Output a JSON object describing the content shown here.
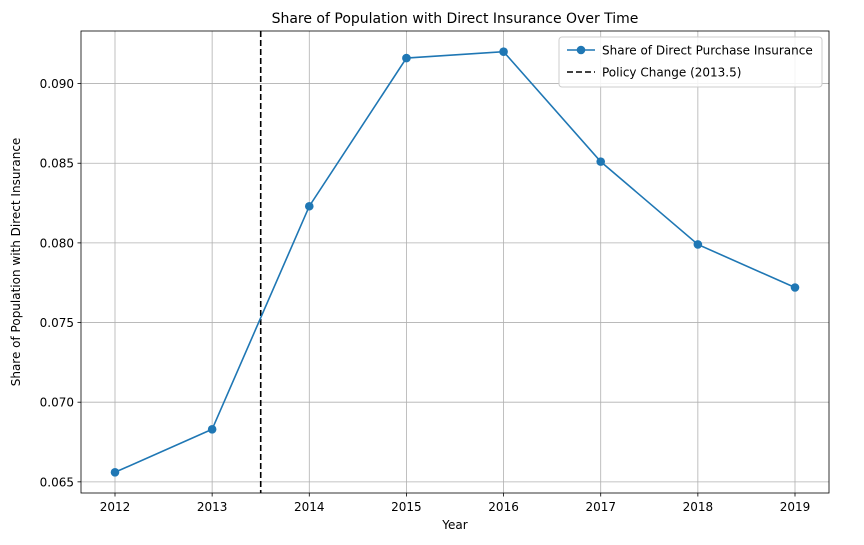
{
  "chart_data": {
    "type": "line",
    "title": "Share of Population with Direct Insurance Over Time",
    "xlabel": "Year",
    "ylabel": "Share of Population with Direct Insurance",
    "xlim": [
      2011.65,
      2019.35
    ],
    "ylim": [
      0.0643,
      0.0933
    ],
    "x": [
      2012,
      2013,
      2014,
      2015,
      2016,
      2017,
      2018,
      2019
    ],
    "series": [
      {
        "name": "Share of Direct Purchase Insurance",
        "color": "#1f77b4",
        "marker": "circle",
        "values": [
          0.0656,
          0.0683,
          0.0823,
          0.0916,
          0.092,
          0.0851,
          0.0799,
          0.0772
        ]
      }
    ],
    "reference_lines": [
      {
        "name": "Policy Change (2013.5)",
        "x": 2013.5,
        "style": "dashed",
        "color": "#000000"
      }
    ],
    "x_ticks": [
      "2012",
      "2013",
      "2014",
      "2015",
      "2016",
      "2017",
      "2018",
      "2019"
    ],
    "y_ticks": [
      "0.065",
      "0.070",
      "0.075",
      "0.080",
      "0.085",
      "0.090"
    ],
    "grid": true,
    "legend_position": "top-right"
  }
}
